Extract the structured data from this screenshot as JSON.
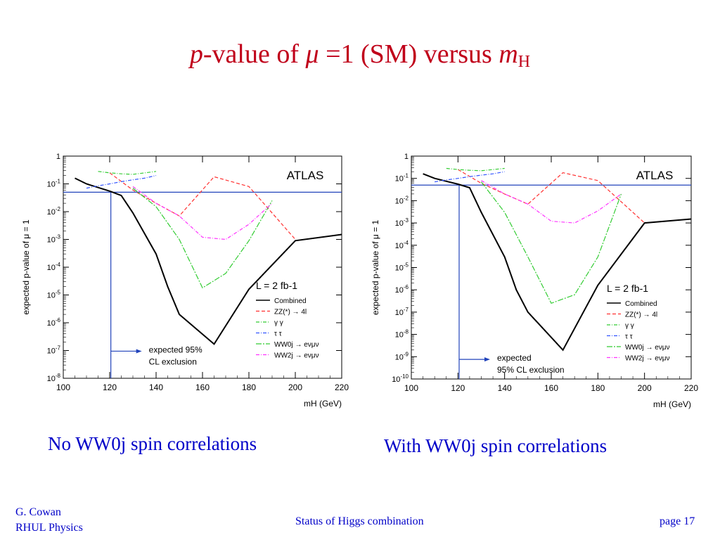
{
  "slide": {
    "title_p": "p",
    "title_mid": "-value of ",
    "title_mu": "μ",
    "title_rest": " =1 (SM) versus ",
    "title_m": "m",
    "title_H": "H",
    "caption_left": "No WW0j spin correlations",
    "caption_right": "With WW0j spin correlations",
    "author_line1": "G. Cowan",
    "author_line2": "RHUL Physics",
    "footer_title": "Status of Higgs combination",
    "page": "page 17"
  },
  "colors": {
    "title": "#c0001a",
    "text_blue": "#0000c8",
    "combined": "#000000",
    "zz": "#ff3030",
    "gammagamma": "#33cc33",
    "tautau": "#3355ff",
    "ww0j": "#33cc33",
    "ww2j": "#ff33ff",
    "exclusion_line": "#2244bb"
  },
  "chart_data": [
    {
      "type": "line",
      "ylog": true,
      "experiment": "ATLAS",
      "luminosity": "L = 2 fb-1",
      "xlabel": "mH (GeV)",
      "ylabel": "expected p-value of μ = 1",
      "xlim": [
        100,
        220
      ],
      "ylim": [
        1e-08,
        1
      ],
      "x_ticks": [
        100,
        120,
        140,
        160,
        180,
        200,
        220
      ],
      "y_ticks": [
        {
          "value": 1,
          "label": "1"
        },
        {
          "value": 0.1,
          "label": "10-1"
        },
        {
          "value": 0.01,
          "label": "10-2"
        },
        {
          "value": 0.001,
          "label": "10-3"
        },
        {
          "value": 0.0001,
          "label": "10-4"
        },
        {
          "value": 1e-05,
          "label": "10-5"
        },
        {
          "value": 1e-06,
          "label": "10-6"
        },
        {
          "value": 1e-07,
          "label": "10-7"
        },
        {
          "value": 1e-08,
          "label": "10-8"
        }
      ],
      "reference_line": 0.05,
      "exclusion_annotation": [
        "expected 95%",
        "CL exclusion"
      ],
      "exclusion_mass": 120.5,
      "series": [
        {
          "name": "Combined",
          "style": "solid",
          "color": "#000000",
          "x": [
            105,
            110,
            120,
            125,
            130,
            140,
            145,
            150,
            165,
            180,
            200,
            220
          ],
          "y": [
            0.16,
            0.1,
            0.055,
            0.038,
            0.009,
            0.0003,
            2e-05,
            2e-06,
            1.7e-07,
            1.6e-05,
            0.0009,
            0.0015
          ]
        },
        {
          "name": "ZZ(*) → 4l",
          "style": "dashed",
          "color": "#ff3030",
          "x": [
            120,
            130,
            140,
            150,
            165,
            180,
            200
          ],
          "y": [
            0.25,
            0.06,
            0.02,
            0.007,
            0.18,
            0.08,
            0.001
          ]
        },
        {
          "name": "γ γ",
          "style": "dotdash",
          "color": "#33cc33",
          "x": [
            115,
            120,
            125,
            130,
            140
          ],
          "y": [
            0.28,
            0.25,
            0.23,
            0.22,
            0.28
          ]
        },
        {
          "name": "τ τ",
          "style": "dotdash",
          "color": "#3355ff",
          "x": [
            110,
            115,
            120,
            125,
            130,
            135,
            140
          ],
          "y": [
            0.07,
            0.085,
            0.1,
            0.12,
            0.14,
            0.16,
            0.2
          ]
        },
        {
          "name": "WW0j → eνμν",
          "style": "longdash",
          "color": "#33cc33",
          "x": [
            130,
            140,
            150,
            160,
            170,
            180,
            190
          ],
          "y": [
            0.07,
            0.015,
            0.001,
            1.8e-05,
            6e-05,
            0.0009,
            0.025
          ]
        },
        {
          "name": "WW2j → eνμν",
          "style": "dotdash",
          "color": "#ff33ff",
          "x": [
            130,
            140,
            150,
            160,
            170,
            180,
            190
          ],
          "y": [
            0.08,
            0.02,
            0.007,
            0.0012,
            0.001,
            0.0035,
            0.02
          ]
        }
      ]
    },
    {
      "type": "line",
      "ylog": true,
      "experiment": "ATLAS",
      "luminosity": "L = 2 fb-1",
      "xlabel": "mH (GeV)",
      "ylabel": "expected p-value of μ = 1",
      "xlim": [
        100,
        220
      ],
      "ylim": [
        1e-10,
        1
      ],
      "x_ticks": [
        100,
        120,
        140,
        160,
        180,
        200,
        220
      ],
      "y_ticks": [
        {
          "value": 1,
          "label": "1"
        },
        {
          "value": 0.1,
          "label": "10-1"
        },
        {
          "value": 0.01,
          "label": "10-2"
        },
        {
          "value": 0.001,
          "label": "10-3"
        },
        {
          "value": 0.0001,
          "label": "10-4"
        },
        {
          "value": 1e-05,
          "label": "10-5"
        },
        {
          "value": 1e-06,
          "label": "10-6"
        },
        {
          "value": 1e-07,
          "label": "10-7"
        },
        {
          "value": 1e-08,
          "label": "10-8"
        },
        {
          "value": 1e-09,
          "label": "10-9"
        },
        {
          "value": 1e-10,
          "label": "10-10"
        }
      ],
      "reference_line": 0.05,
      "exclusion_annotation": [
        "expected",
        "95% CL exclusion"
      ],
      "exclusion_mass": 120.5,
      "series": [
        {
          "name": "Combined",
          "style": "solid",
          "color": "#000000",
          "x": [
            105,
            110,
            120,
            125,
            130,
            140,
            145,
            150,
            165,
            180,
            200,
            220
          ],
          "y": [
            0.16,
            0.1,
            0.055,
            0.038,
            0.003,
            3e-05,
            1e-06,
            1e-07,
            2e-09,
            1.6e-06,
            0.001,
            0.0015
          ]
        },
        {
          "name": "ZZ(*) → 4l",
          "style": "dashed",
          "color": "#ff3030",
          "x": [
            120,
            130,
            140,
            150,
            165,
            180,
            200
          ],
          "y": [
            0.25,
            0.06,
            0.02,
            0.007,
            0.18,
            0.08,
            0.001
          ]
        },
        {
          "name": "γ γ",
          "style": "dotdash",
          "color": "#33cc33",
          "x": [
            115,
            120,
            125,
            130,
            140
          ],
          "y": [
            0.28,
            0.25,
            0.23,
            0.22,
            0.28
          ]
        },
        {
          "name": "τ τ",
          "style": "dotdash",
          "color": "#3355ff",
          "x": [
            110,
            115,
            120,
            125,
            130,
            135,
            140
          ],
          "y": [
            0.07,
            0.085,
            0.1,
            0.12,
            0.14,
            0.16,
            0.2
          ]
        },
        {
          "name": "WW0j → eνμν",
          "style": "longdash",
          "color": "#33cc33",
          "x": [
            130,
            140,
            150,
            160,
            170,
            180,
            190
          ],
          "y": [
            0.07,
            0.003,
            3e-05,
            2.5e-07,
            6e-07,
            3e-05,
            0.02
          ]
        },
        {
          "name": "WW2j → eνμν",
          "style": "dotdash",
          "color": "#ff33ff",
          "x": [
            130,
            140,
            150,
            160,
            170,
            180,
            190
          ],
          "y": [
            0.08,
            0.02,
            0.007,
            0.0012,
            0.001,
            0.0035,
            0.02
          ]
        }
      ]
    }
  ]
}
